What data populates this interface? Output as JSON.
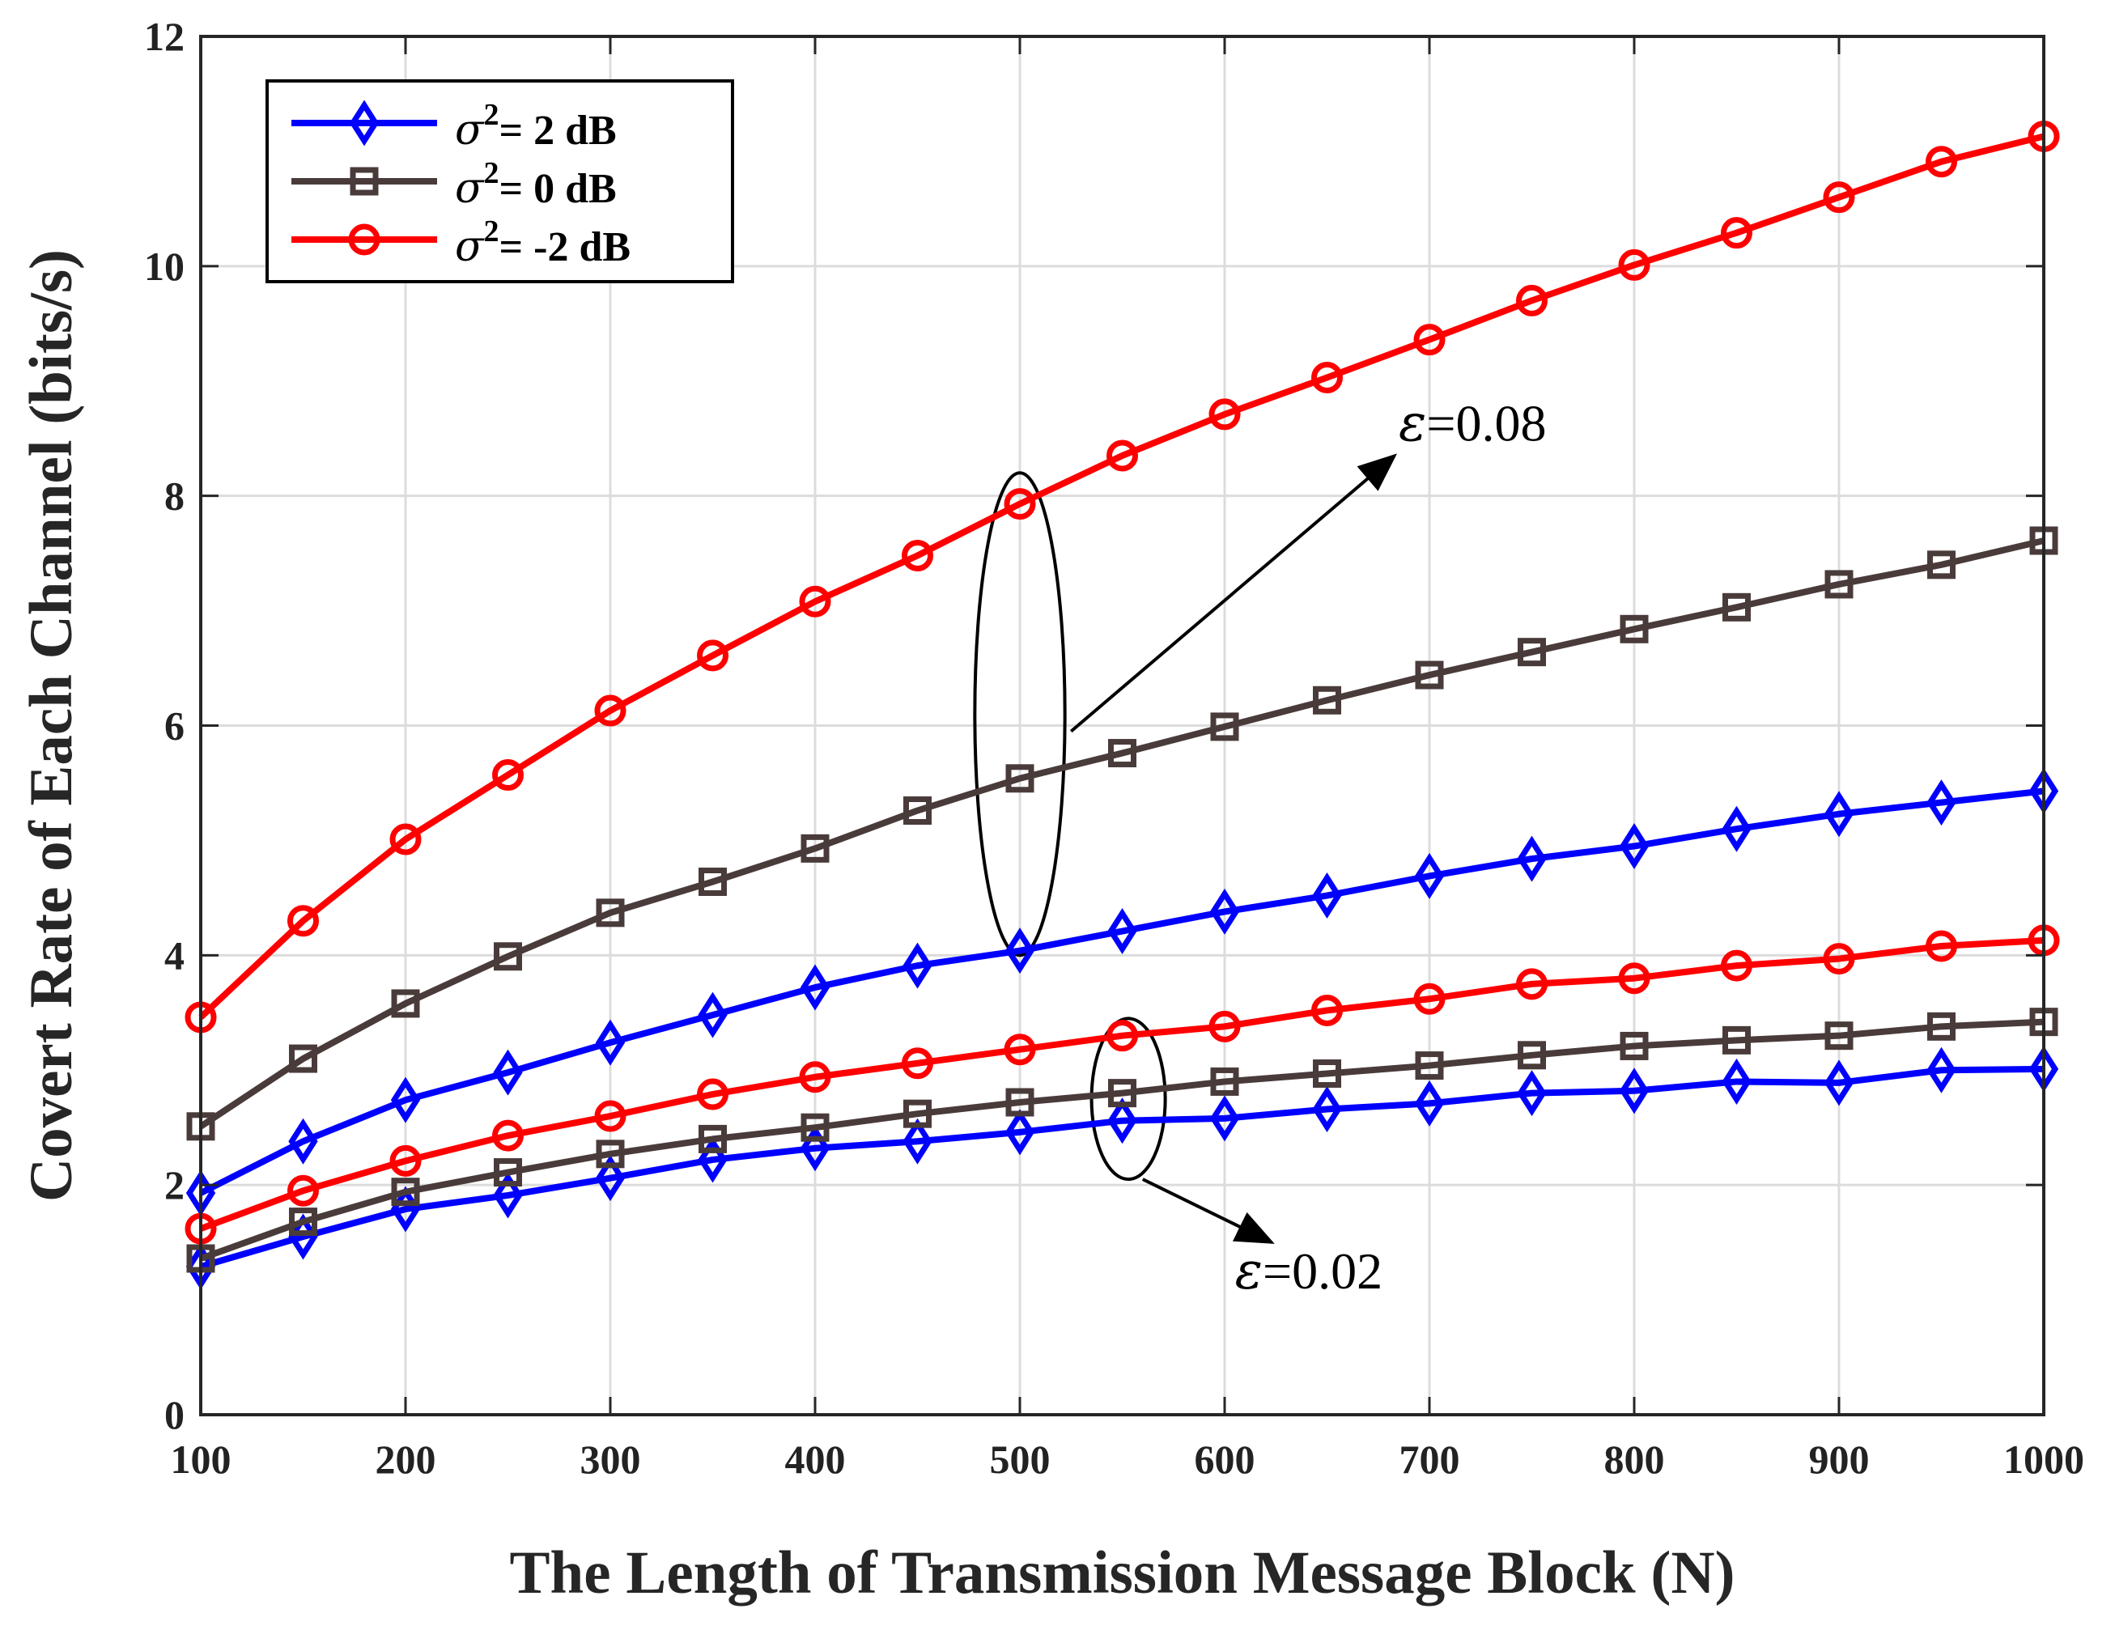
{
  "chart_data": {
    "type": "line",
    "title": "",
    "xlabel": "The Length of Transmission Message Block (N)",
    "ylabel": "Covert Rate of Each Channel (bits/s)",
    "xlim": [
      100,
      1000
    ],
    "ylim": [
      0,
      12
    ],
    "xticks": [
      100,
      200,
      300,
      400,
      500,
      600,
      700,
      800,
      900,
      1000
    ],
    "xtick_labels": [
      "100",
      "200",
      "300",
      "400",
      "500",
      "600",
      "700",
      "800",
      "900",
      "1000"
    ],
    "yticks": [
      0,
      2,
      4,
      6,
      8,
      10,
      12
    ],
    "ytick_labels": [
      "0",
      "2",
      "4",
      "6",
      "8",
      "10",
      "12"
    ],
    "grid": true,
    "legend_position": "top-left",
    "x": [
      100,
      150,
      200,
      250,
      300,
      350,
      400,
      450,
      500,
      550,
      600,
      650,
      700,
      750,
      800,
      850,
      900,
      950,
      1000
    ],
    "series": [
      {
        "name": "σ2= 2 dB, ε=0.08",
        "legend_symbol": "σ",
        "legend_sup": "2",
        "legend_rest": "= 2 dB",
        "color": "#0000ff",
        "marker": "diamond",
        "in_legend": true,
        "values": [
          1.93,
          2.38,
          2.74,
          2.98,
          3.24,
          3.48,
          3.72,
          3.91,
          4.04,
          4.21,
          4.38,
          4.52,
          4.69,
          4.84,
          4.95,
          5.1,
          5.23,
          5.33,
          5.43
        ]
      },
      {
        "name": "σ2= 0 dB, ε=0.08",
        "legend_symbol": "σ",
        "legend_sup": "2",
        "legend_rest": "= 0 dB",
        "color": "#4a3b3b",
        "marker": "square",
        "in_legend": true,
        "values": [
          2.51,
          3.1,
          3.58,
          3.99,
          4.37,
          4.64,
          4.93,
          5.26,
          5.54,
          5.76,
          5.99,
          6.22,
          6.44,
          6.64,
          6.84,
          7.03,
          7.23,
          7.4,
          7.61
        ]
      },
      {
        "name": "σ2= -2 dB, ε=0.08",
        "legend_symbol": "σ",
        "legend_sup": "2",
        "legend_rest": "= -2 dB",
        "color": "#ff0000",
        "marker": "circle",
        "in_legend": true,
        "values": [
          3.46,
          4.3,
          5.01,
          5.57,
          6.13,
          6.61,
          7.08,
          7.48,
          7.93,
          8.35,
          8.71,
          9.03,
          9.36,
          9.7,
          10.01,
          10.29,
          10.6,
          10.91,
          11.13
        ]
      },
      {
        "name": "σ2= 2 dB, ε=0.02",
        "color": "#0000ff",
        "marker": "diamond",
        "in_legend": false,
        "values": [
          1.29,
          1.55,
          1.79,
          1.91,
          2.06,
          2.22,
          2.32,
          2.38,
          2.46,
          2.56,
          2.58,
          2.66,
          2.71,
          2.8,
          2.82,
          2.9,
          2.89,
          3.0,
          3.01
        ]
      },
      {
        "name": "σ2= 0 dB, ε=0.02",
        "color": "#4a3b3b",
        "marker": "square",
        "in_legend": false,
        "values": [
          1.36,
          1.68,
          1.94,
          2.11,
          2.27,
          2.4,
          2.5,
          2.62,
          2.72,
          2.8,
          2.9,
          2.97,
          3.04,
          3.13,
          3.21,
          3.26,
          3.3,
          3.38,
          3.42
        ]
      },
      {
        "name": "σ2= -2 dB, ε=0.02",
        "color": "#ff0000",
        "marker": "circle",
        "in_legend": false,
        "values": [
          1.62,
          1.95,
          2.21,
          2.43,
          2.6,
          2.79,
          2.94,
          3.06,
          3.18,
          3.3,
          3.38,
          3.52,
          3.62,
          3.75,
          3.8,
          3.91,
          3.97,
          4.08,
          4.13
        ]
      }
    ],
    "annotations": [
      {
        "symbol": "ε",
        "value": "=0.08",
        "ellipse_center": [
          500,
          6.1
        ],
        "ellipse_radius": [
          22,
          2.1
        ],
        "arrow_from": [
          525,
          5.95
        ],
        "arrow_to": [
          683,
          8.35
        ],
        "label_anchor": [
          685,
          8.48
        ]
      },
      {
        "symbol": "ε",
        "value": "=0.02",
        "ellipse_center": [
          553,
          2.75
        ],
        "ellipse_radius": [
          18,
          0.7
        ],
        "arrow_from": [
          560,
          2.05
        ],
        "arrow_to": [
          623,
          1.5
        ],
        "label_anchor": [
          605,
          1.1
        ]
      }
    ]
  }
}
